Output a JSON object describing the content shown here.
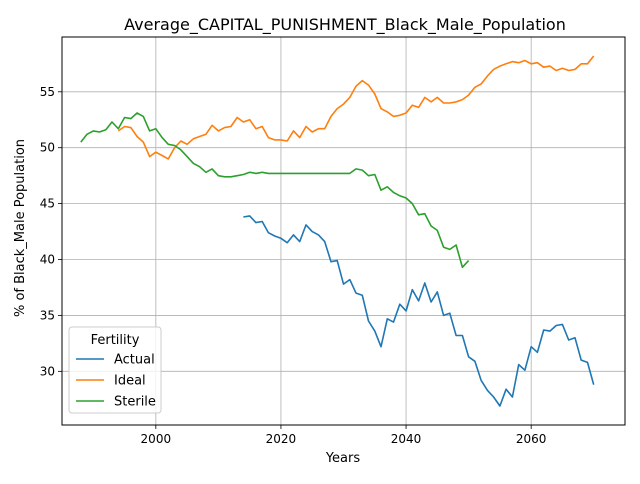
{
  "chart_data": {
    "type": "line",
    "title": "Average_CAPITAL_PUNISHMENT_Black_Male_Population",
    "xlabel": "Years",
    "ylabel": "% of Black_Male Population",
    "xlim": [
      1985,
      2075
    ],
    "ylim": [
      25.2,
      59.9
    ],
    "xticks": [
      2000,
      2020,
      2040,
      2060
    ],
    "yticks": [
      30,
      35,
      40,
      45,
      50,
      55
    ],
    "grid": true,
    "legend": {
      "title": "Fertility",
      "placement": "lower-left"
    },
    "colors": {
      "Actual": "#1f77b4",
      "Ideal": "#ff7f0e",
      "Sterile": "#2ca02c"
    },
    "series": [
      {
        "name": "Actual",
        "x": [
          2014,
          2015,
          2016,
          2017,
          2018,
          2019,
          2020,
          2021,
          2022,
          2023,
          2024,
          2025,
          2026,
          2027,
          2028,
          2029,
          2030,
          2031,
          2032,
          2033,
          2034,
          2035,
          2036,
          2037,
          2038,
          2039,
          2040,
          2041,
          2042,
          2043,
          2044,
          2045,
          2046,
          2047,
          2048,
          2049,
          2050,
          2051,
          2052,
          2053,
          2054,
          2055,
          2056,
          2057,
          2058,
          2059,
          2060,
          2061,
          2062,
          2063,
          2064,
          2065,
          2066,
          2067,
          2068,
          2069,
          2070
        ],
        "values": [
          43.8,
          43.9,
          43.3,
          43.4,
          42.4,
          42.1,
          41.9,
          41.5,
          42.2,
          41.6,
          43.1,
          42.5,
          42.2,
          41.6,
          39.8,
          39.9,
          37.8,
          38.2,
          37.0,
          36.8,
          34.5,
          33.6,
          32.2,
          34.7,
          34.4,
          36.0,
          35.4,
          37.3,
          36.3,
          37.9,
          36.2,
          37.1,
          35.0,
          35.2,
          33.2,
          33.2,
          31.3,
          30.9,
          29.2,
          28.3,
          27.7,
          26.9,
          28.4,
          27.7,
          30.6,
          30.1,
          32.2,
          31.7,
          33.7,
          33.6,
          34.1,
          34.2,
          32.8,
          33.0,
          31.0,
          30.8,
          28.8
        ]
      },
      {
        "name": "Ideal",
        "x": [
          1994,
          1995,
          1996,
          1997,
          1998,
          1999,
          2000,
          2001,
          2002,
          2003,
          2004,
          2005,
          2006,
          2007,
          2008,
          2009,
          2010,
          2011,
          2012,
          2013,
          2014,
          2015,
          2016,
          2017,
          2018,
          2019,
          2020,
          2021,
          2022,
          2023,
          2024,
          2025,
          2026,
          2027,
          2028,
          2029,
          2030,
          2031,
          2032,
          2033,
          2034,
          2035,
          2036,
          2037,
          2038,
          2039,
          2040,
          2041,
          2042,
          2043,
          2044,
          2045,
          2046,
          2047,
          2048,
          2049,
          2050,
          2051,
          2052,
          2053,
          2054,
          2055,
          2056,
          2057,
          2058,
          2059,
          2060,
          2061,
          2062,
          2063,
          2064,
          2065,
          2066,
          2067,
          2068,
          2069,
          2070
        ],
        "values": [
          51.5,
          51.9,
          51.8,
          51.0,
          50.5,
          49.2,
          49.6,
          49.3,
          49.0,
          50.0,
          50.6,
          50.3,
          50.8,
          51.0,
          51.2,
          52.0,
          51.5,
          51.8,
          51.9,
          52.7,
          52.3,
          52.5,
          51.7,
          51.9,
          50.9,
          50.7,
          50.7,
          50.6,
          51.5,
          50.9,
          51.9,
          51.4,
          51.7,
          51.7,
          52.8,
          53.5,
          53.9,
          54.5,
          55.5,
          56.0,
          55.6,
          54.8,
          53.5,
          53.2,
          52.8,
          52.9,
          53.1,
          53.8,
          53.6,
          54.5,
          54.1,
          54.5,
          54.0,
          54.0,
          54.1,
          54.3,
          54.7,
          55.4,
          55.7,
          56.4,
          57.0,
          57.3,
          57.5,
          57.7,
          57.6,
          57.8,
          57.5,
          57.6,
          57.2,
          57.3,
          56.9,
          57.1,
          56.9,
          57.0,
          57.5,
          57.5,
          58.2
        ]
      },
      {
        "name": "Sterile",
        "x": [
          1988,
          1989,
          1990,
          1991,
          1992,
          1993,
          1994,
          1995,
          1996,
          1997,
          1998,
          1999,
          2000,
          2001,
          2002,
          2003,
          2004,
          2005,
          2006,
          2007,
          2008,
          2009,
          2010,
          2011,
          2012,
          2013,
          2014,
          2015,
          2016,
          2017,
          2018,
          2019,
          2020,
          2021,
          2022,
          2023,
          2024,
          2025,
          2026,
          2027,
          2028,
          2029,
          2030,
          2031,
          2032,
          2033,
          2034,
          2035,
          2036,
          2037,
          2038,
          2039,
          2040,
          2041,
          2042,
          2043,
          2044,
          2045,
          2046,
          2047,
          2048,
          2049,
          2050
        ],
        "values": [
          50.5,
          51.2,
          51.5,
          51.4,
          51.6,
          52.3,
          51.7,
          52.7,
          52.6,
          53.1,
          52.8,
          51.5,
          51.7,
          50.9,
          50.3,
          50.2,
          49.8,
          49.2,
          48.6,
          48.3,
          47.8,
          48.1,
          47.5,
          47.4,
          47.4,
          47.5,
          47.6,
          47.8,
          47.7,
          47.8,
          47.7,
          47.7,
          47.7,
          47.7,
          47.7,
          47.7,
          47.7,
          47.7,
          47.7,
          47.7,
          47.7,
          47.7,
          47.7,
          47.7,
          48.1,
          48.0,
          47.5,
          47.6,
          46.2,
          46.5,
          46.0,
          45.7,
          45.5,
          45.0,
          44.0,
          44.1,
          43.0,
          42.6,
          41.1,
          40.9,
          41.3,
          39.3,
          39.9
        ]
      }
    ]
  }
}
